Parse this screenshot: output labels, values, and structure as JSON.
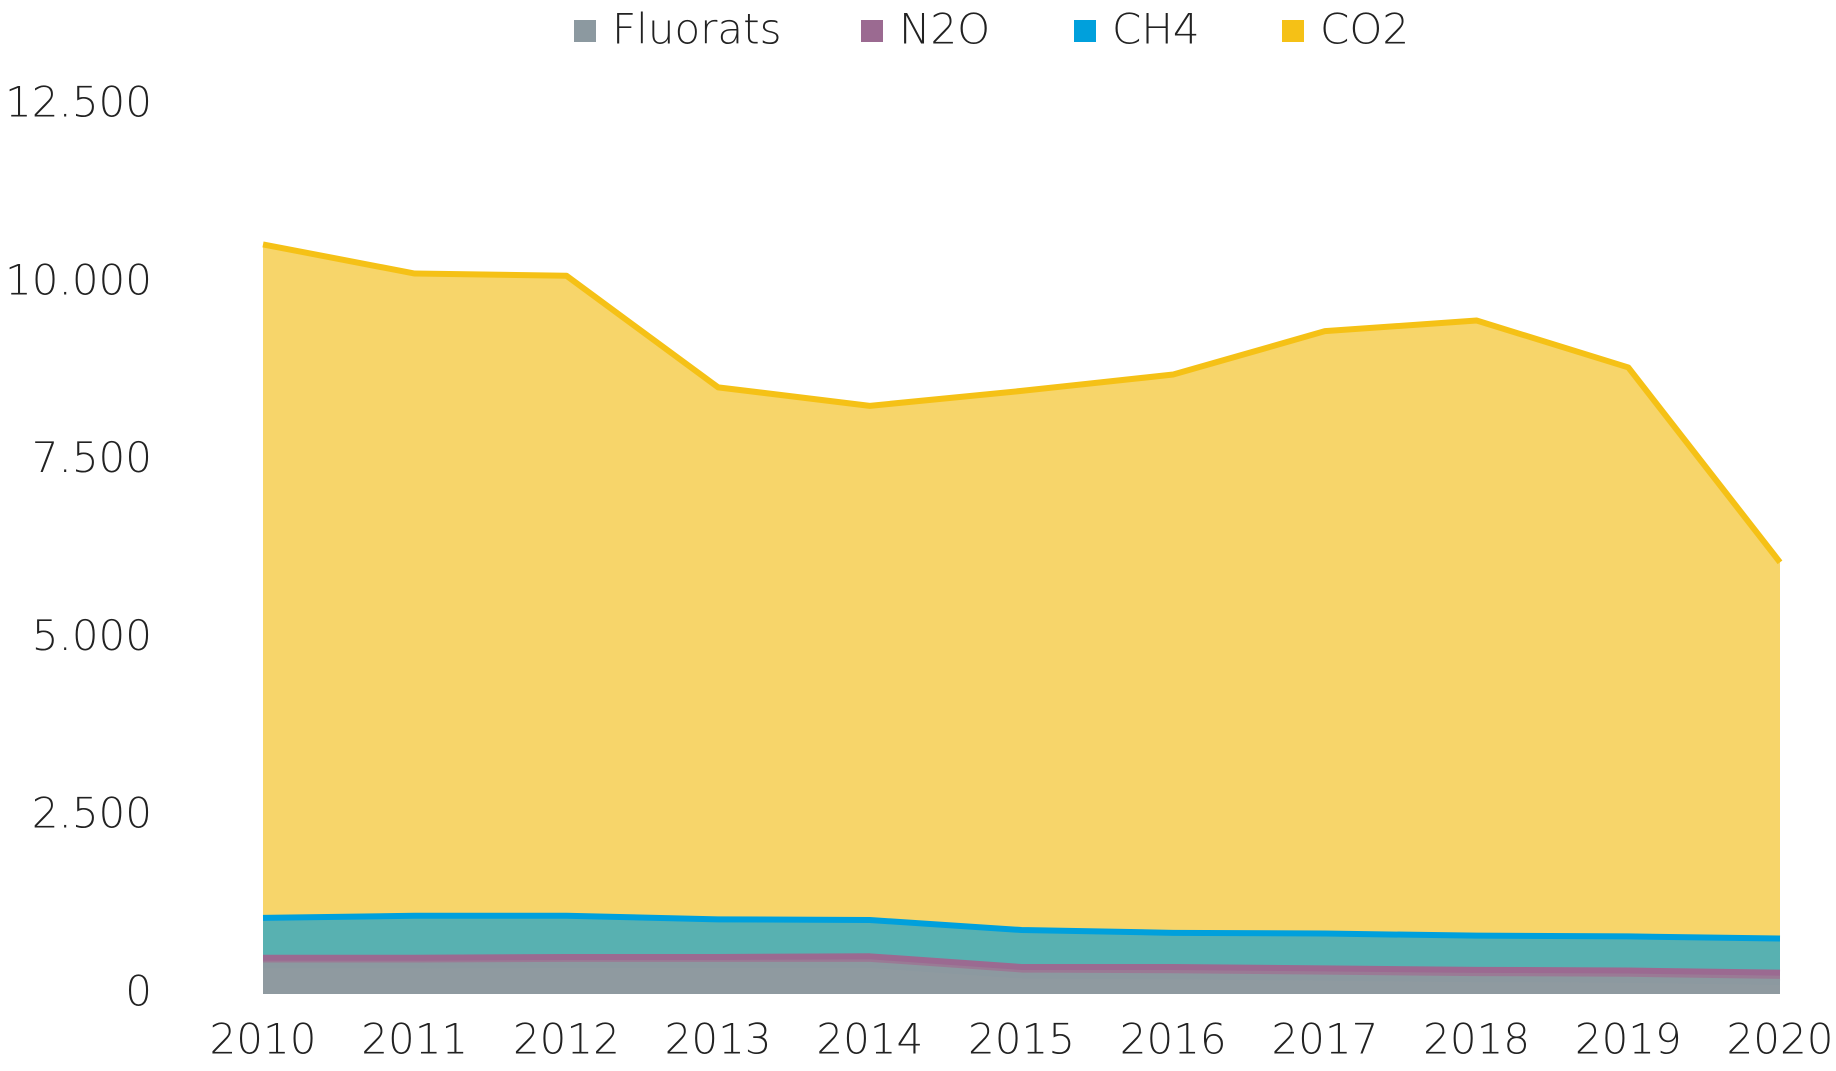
{
  "chart_data": {
    "type": "stacked_area",
    "categories": [
      "2010",
      "2011",
      "2012",
      "2013",
      "2014",
      "2015",
      "2016",
      "2017",
      "2018",
      "2019",
      "2020"
    ],
    "series": [
      {
        "name": "Fluorats",
        "color": "#8c99a0",
        "fill": "#8f9aa0",
        "values": [
          400,
          400,
          410,
          410,
          410,
          260,
          250,
          230,
          210,
          200,
          170
        ]
      },
      {
        "name": "N2O",
        "color": "#9b6a91",
        "fill": "#9a7a95",
        "values": [
          110,
          110,
          110,
          110,
          120,
          120,
          130,
          130,
          130,
          130,
          130
        ]
      },
      {
        "name": "CH4",
        "color": "#00a0dc",
        "fill": "#58b1b1",
        "values": [
          560,
          590,
          580,
          530,
          510,
          520,
          480,
          490,
          480,
          480,
          480
        ]
      },
      {
        "name": "CO2",
        "color": "#f5c116",
        "fill": "#f7d56a",
        "values": [
          9470,
          9030,
          9000,
          7480,
          7230,
          7580,
          7850,
          8470,
          8650,
          8000,
          5290
        ]
      }
    ],
    "ylim": [
      0,
      12500
    ],
    "yticks": [
      0,
      {
        "value": 2500,
        "label": "2.500"
      },
      {
        "value": 5000,
        "label": "5.000"
      },
      {
        "value": 7500,
        "label": "7.500"
      },
      {
        "value": 10000,
        "label": "10.000"
      },
      {
        "value": 12500,
        "label": "12.500"
      }
    ],
    "legend": "top"
  }
}
